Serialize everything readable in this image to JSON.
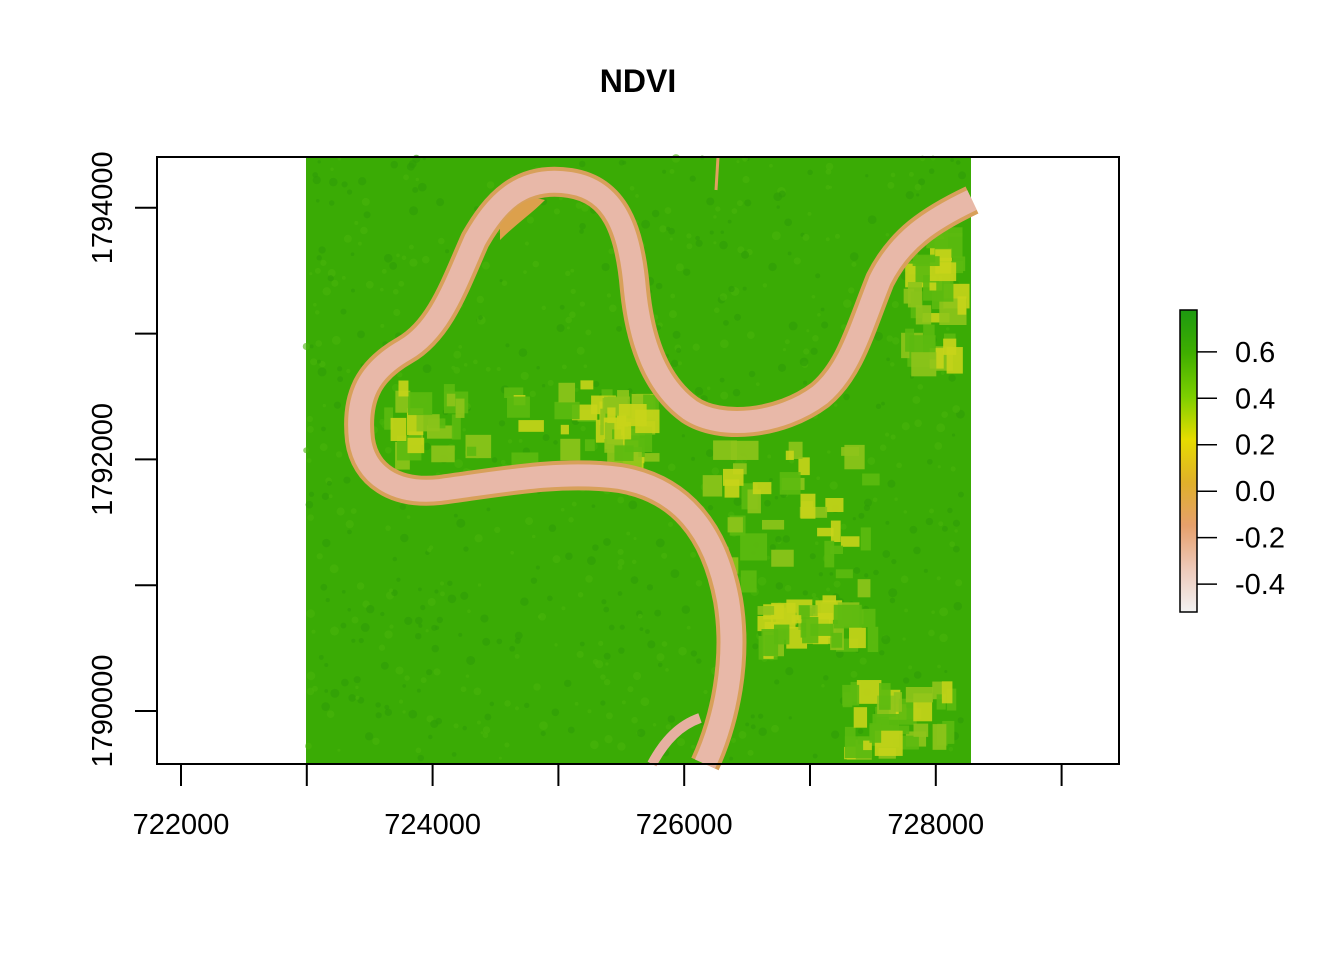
{
  "title": "NDVI",
  "x_axis": {
    "ticks": [
      722000,
      723000,
      724000,
      725000,
      726000,
      727000,
      728000,
      729000
    ],
    "labels": [
      {
        "value": 722000,
        "text": "722000"
      },
      {
        "value": 724000,
        "text": "724000"
      },
      {
        "value": 726000,
        "text": "726000"
      },
      {
        "value": 728000,
        "text": "728000"
      }
    ]
  },
  "y_axis": {
    "ticks": [
      1790000,
      1791000,
      1792000,
      1793000,
      1794000
    ],
    "labels": [
      {
        "value": 1790000,
        "text": "1790000"
      },
      {
        "value": 1792000,
        "text": "1792000"
      },
      {
        "value": 1794000,
        "text": "1794000"
      }
    ]
  },
  "legend": {
    "range": [
      -0.52,
      0.78
    ],
    "labels": [
      {
        "value": 0.6,
        "text": "0.6"
      },
      {
        "value": 0.4,
        "text": "0.4"
      },
      {
        "value": 0.2,
        "text": "0.2"
      },
      {
        "value": 0.0,
        "text": "0.0"
      },
      {
        "value": -0.2,
        "text": "-0.2"
      },
      {
        "value": -0.4,
        "text": "-0.4"
      }
    ],
    "colors": [
      "#f2f2f2",
      "#eec9b9",
      "#e6a06c",
      "#e0b02a",
      "#e6dc00",
      "#7ccf00",
      "#3fae00",
      "#1d9a10"
    ]
  },
  "colors": {
    "vegetation": "#3aab05",
    "vegetation_dark": "#2f9d06",
    "water": "#e8b4a4",
    "sandbar": "#dca04c",
    "crop_yellow": "#c8d41a",
    "crop_light": "#8ec41b"
  }
}
